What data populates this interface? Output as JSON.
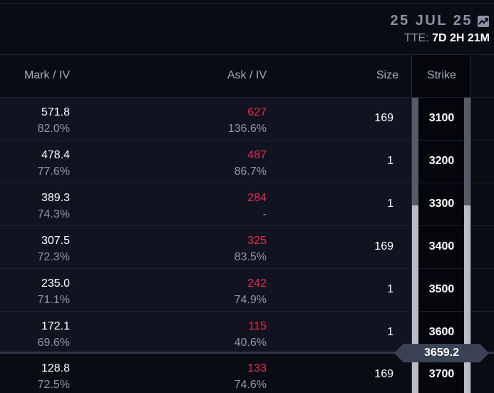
{
  "expiry": {
    "date": "25 JUL 25",
    "tte_label": "TTE:",
    "tte_value": "7D 2H 21M",
    "chart_icon": "chart-trend-icon"
  },
  "columns": {
    "mark_iv": "Mark / IV",
    "ask_iv": "Ask / IV",
    "size": "Size",
    "strike": "Strike"
  },
  "rows": [
    {
      "mark": "571.8",
      "mark_iv": "82.0%",
      "ask": "627",
      "ask_iv": "136.6%",
      "size": "169",
      "strike": "3100"
    },
    {
      "mark": "478.4",
      "mark_iv": "77.6%",
      "ask": "487",
      "ask_iv": "86.7%",
      "size": "1",
      "strike": "3200"
    },
    {
      "mark": "389.3",
      "mark_iv": "74.3%",
      "ask": "284",
      "ask_iv": "-",
      "size": "1",
      "strike": "3300"
    },
    {
      "mark": "307.5",
      "mark_iv": "72.3%",
      "ask": "325",
      "ask_iv": "83.5%",
      "size": "169",
      "strike": "3400"
    },
    {
      "mark": "235.0",
      "mark_iv": "71.1%",
      "ask": "242",
      "ask_iv": "74.9%",
      "size": "1",
      "strike": "3500"
    },
    {
      "mark": "172.1",
      "mark_iv": "69.6%",
      "ask": "115",
      "ask_iv": "40.6%",
      "size": "1",
      "strike": "3600"
    },
    {
      "mark": "128.8",
      "mark_iv": "72.5%",
      "ask": "133",
      "ask_iv": "74.6%",
      "size": "169",
      "strike": "3700"
    }
  ],
  "index_price": "3659.2",
  "colors": {
    "ask": "#e0304f",
    "background": "#0a0c14",
    "row_bg": "#111420"
  }
}
